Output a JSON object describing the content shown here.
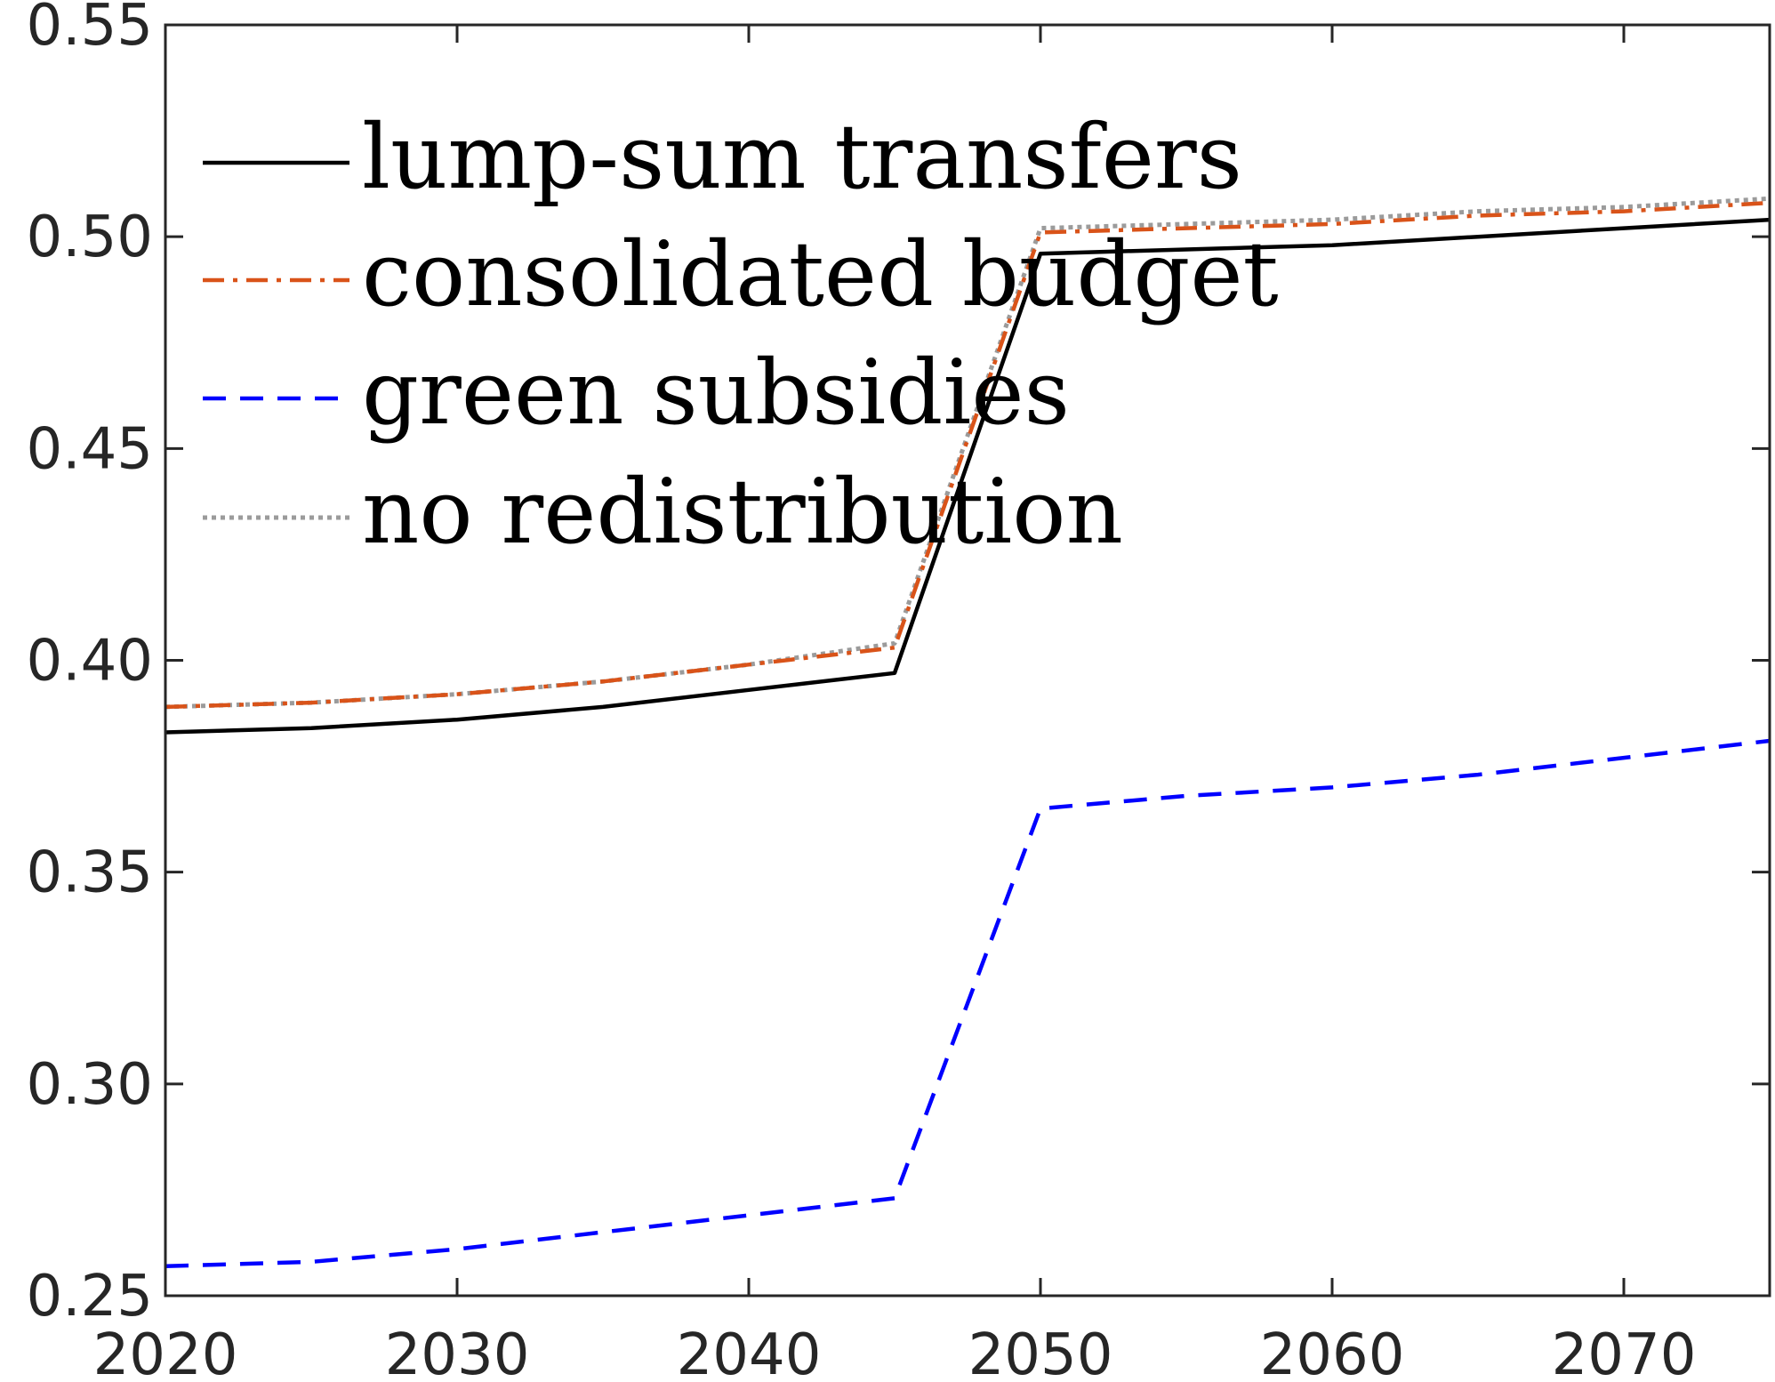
{
  "chart_data": {
    "type": "line",
    "title": "",
    "xlabel": "",
    "ylabel": "",
    "xlim": [
      2020,
      2075
    ],
    "ylim": [
      0.25,
      0.55
    ],
    "xticks": [
      "2020",
      "2030",
      "2040",
      "2050",
      "2060",
      "2070"
    ],
    "yticks": [
      "0.25",
      "0.30",
      "0.35",
      "0.40",
      "0.45",
      "0.50",
      "0.55"
    ],
    "grid": false,
    "legend_position": "top-left",
    "x": [
      2020,
      2025,
      2030,
      2035,
      2040,
      2045,
      2050,
      2055,
      2060,
      2065,
      2070,
      2075
    ],
    "series": [
      {
        "name": "lump-sum transfers",
        "color": "#000000",
        "style": "solid",
        "values": [
          0.383,
          0.384,
          0.386,
          0.389,
          0.393,
          0.397,
          0.496,
          0.497,
          0.498,
          0.5,
          0.502,
          0.504
        ]
      },
      {
        "name": "consolidated budget",
        "color": "#D95319",
        "style": "dashdot",
        "values": [
          0.389,
          0.39,
          0.392,
          0.395,
          0.399,
          0.403,
          0.501,
          0.502,
          0.503,
          0.505,
          0.506,
          0.508
        ]
      },
      {
        "name": "green subsidies",
        "color": "#0000FF",
        "style": "dashed",
        "values": [
          0.257,
          0.258,
          0.261,
          0.265,
          0.269,
          0.273,
          0.365,
          0.368,
          0.37,
          0.373,
          0.377,
          0.381
        ]
      },
      {
        "name": "no redistribution",
        "color": "#9B9B9B",
        "style": "dotted",
        "values": [
          0.389,
          0.39,
          0.392,
          0.395,
          0.399,
          0.404,
          0.502,
          0.503,
          0.504,
          0.506,
          0.507,
          0.509
        ]
      }
    ]
  }
}
